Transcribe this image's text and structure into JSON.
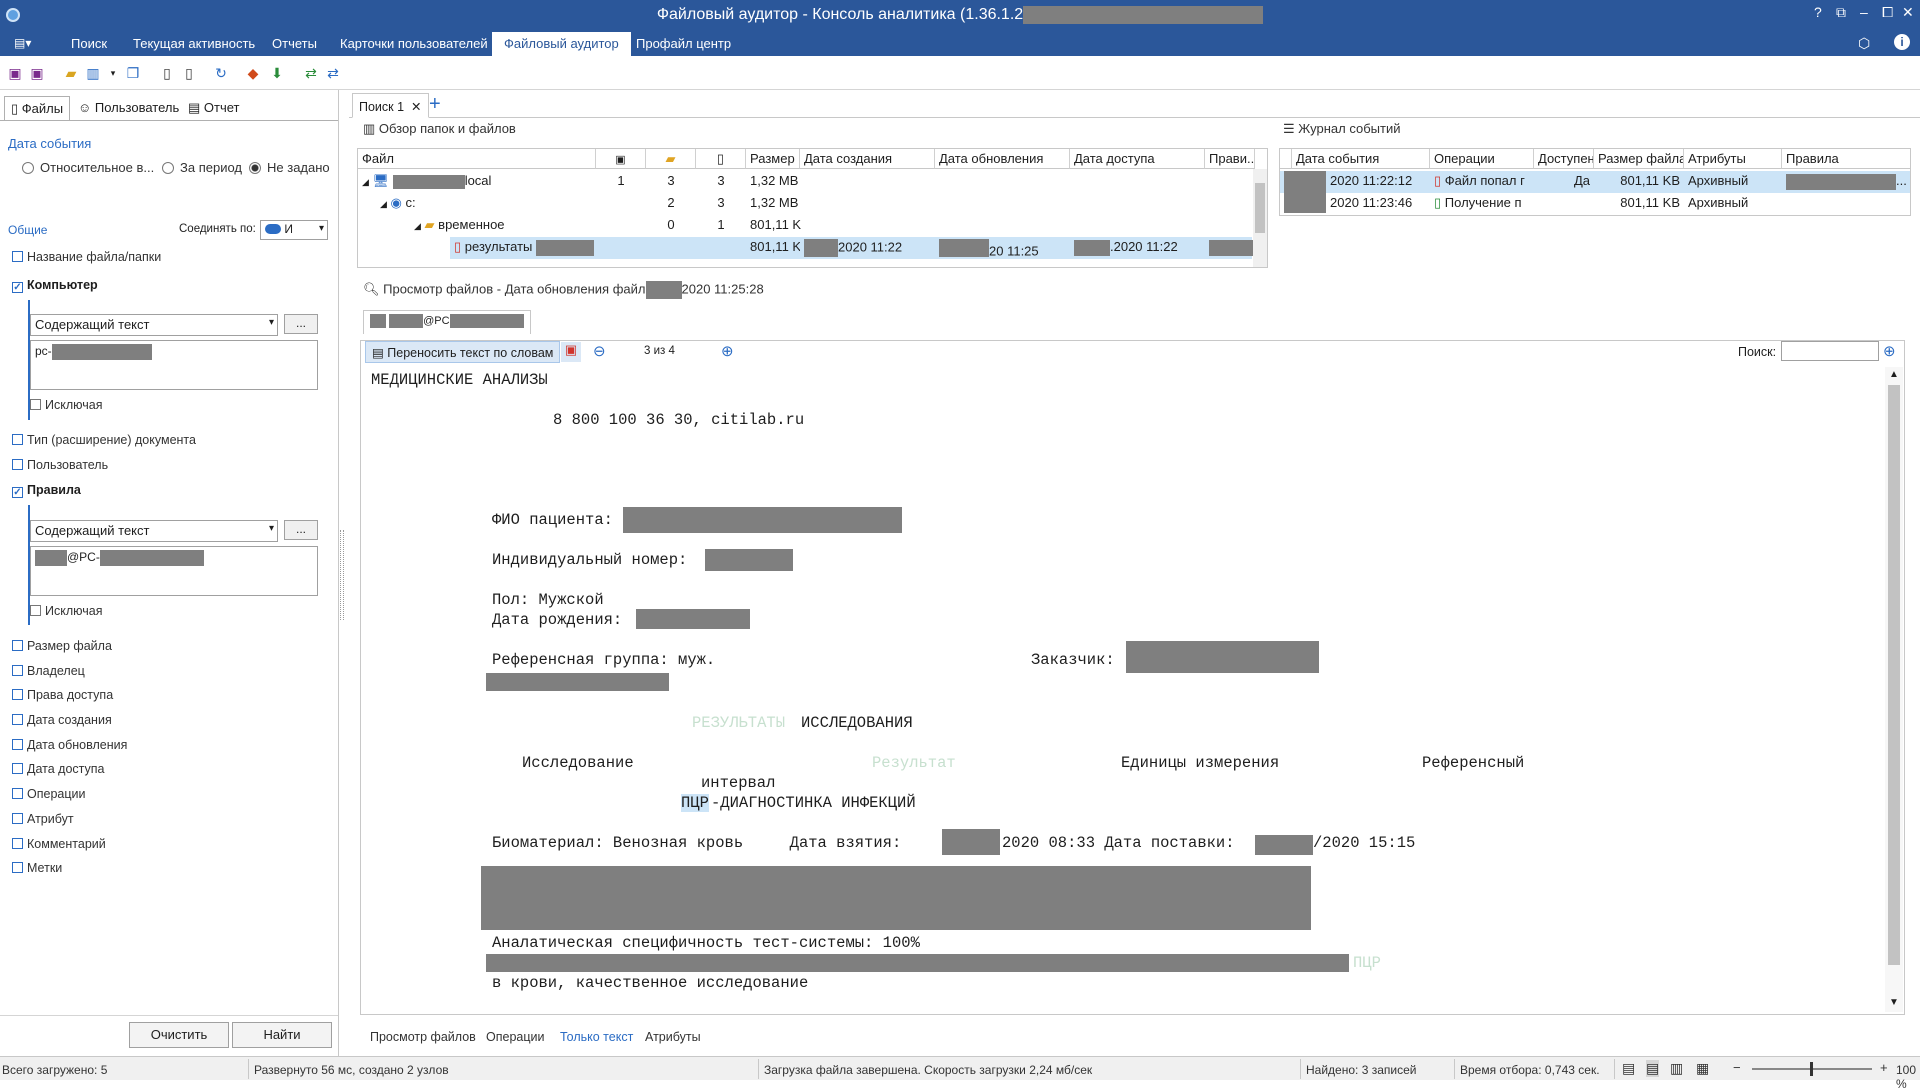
{
  "window": {
    "title": "Файловый аудитор - Консоль аналитика (1.36.1.2",
    "controls": [
      "?",
      "⧉",
      "–",
      "⧠",
      "✕"
    ]
  },
  "ribbon": {
    "tabs": [
      "Поиск",
      "Текущая активность",
      "Отчеты",
      "Карточки пользователей",
      "Файловый аудитор",
      "Профайл центр"
    ],
    "active": "Файловый аудитор"
  },
  "left": {
    "tabs": [
      "Файлы",
      "Пользователь",
      "Отчет"
    ],
    "event_date": {
      "heading": "Дата события",
      "options": [
        "Относительное в...",
        "За период",
        "Не задано"
      ],
      "selected": "Не задано"
    },
    "general": {
      "heading": "Общие",
      "join_label": "Соединять по:",
      "join_value": "И"
    },
    "filters": [
      {
        "label": "Название файла/папки",
        "checked": false
      },
      {
        "label": "Компьютер",
        "checked": true
      },
      {
        "label": "Тип (расширение) документа",
        "checked": false
      },
      {
        "label": "Пользователь",
        "checked": false
      },
      {
        "label": "Правила",
        "checked": true
      },
      {
        "label": "Размер файла",
        "checked": false
      },
      {
        "label": "Владелец",
        "checked": false
      },
      {
        "label": "Права доступа",
        "checked": false
      },
      {
        "label": "Дата создания",
        "checked": false
      },
      {
        "label": "Дата обновления",
        "checked": false
      },
      {
        "label": "Дата доступа",
        "checked": false
      },
      {
        "label": "Операции",
        "checked": false
      },
      {
        "label": "Атрибут",
        "checked": false
      },
      {
        "label": "Комментарий",
        "checked": false
      },
      {
        "label": "Метки",
        "checked": false
      }
    ],
    "computer": {
      "combo": "Содержащий текст",
      "more": "...",
      "text": "pc-",
      "exclude": "Исключая"
    },
    "rules": {
      "combo": "Содержащий текст",
      "more": "...",
      "text": "@PC-",
      "exclude": "Исключая"
    },
    "buttons": {
      "clear": "Очистить",
      "find": "Найти"
    }
  },
  "doc_tab": {
    "label": "Поиск 1",
    "close": "✕",
    "add": "+"
  },
  "overview": {
    "title": "Обзор папок и файлов",
    "headers": [
      "Файл",
      "",
      "",
      "",
      "Размер",
      "Дата создания",
      "Дата обновления",
      "Дата доступа",
      "Прави..."
    ],
    "rows": [
      {
        "name": "local",
        "c1": "1",
        "c2": "3",
        "c3": "3",
        "size": "1,32 MB"
      },
      {
        "name": "c:",
        "c1": "",
        "c2": "2",
        "c3": "3",
        "size": "1,32 MB"
      },
      {
        "name": "временное",
        "c1": "",
        "c2": "0",
        "c3": "1",
        "size": "801,11 K"
      },
      {
        "name": "результаты",
        "size": "801,11 K",
        "created": "2020 11:22",
        "updated": "20 11:25",
        "accessed": ".2020 11:22"
      }
    ]
  },
  "journal": {
    "title": "Журнал событий",
    "headers": [
      "Дата события",
      "Операции",
      "Доступен",
      "Размер файла",
      "Атрибуты",
      "Правила"
    ],
    "rows": [
      {
        "date": "2020 11:22:12",
        "op": "Файл попал г",
        "avail": "Да",
        "size": "801,11 KB",
        "attr": "Архивный",
        "rules": "..."
      },
      {
        "date": "2020 11:23:46",
        "op": "Получение п",
        "avail": "",
        "size": "801,11 KB",
        "attr": "Архивный",
        "rules": ""
      }
    ]
  },
  "preview": {
    "title_prefix": "Просмотр файлов - Дата обновления файл",
    "title_suffix": "2020 11:25:28",
    "file_tab": "@PC",
    "wrap": "Переносить текст по словам",
    "pager": "3 из 4",
    "search_label": "Поиск:",
    "lines": {
      "l1": "МЕДИЦИНСКИЕ АНАЛИЗЫ",
      "l2": "8 800 100 36 30, citilab.ru",
      "l3": "ФИО пациента:",
      "l4": "Индивидуальный номер:",
      "l5": "Пол: Мужской",
      "l6": "Дата рождения:",
      "l7": "Референсная группа: муж.",
      "l8": "Заказчик:",
      "l9a": "РЕЗУЛЬТАТЫ",
      "l9b": "ИССЛЕДОВАНИЯ",
      "l10a": "Исследование",
      "l10b": "Результат",
      "l10c": "Единицы измерения",
      "l10d": "Референсный",
      "l11": "интервал",
      "l12a": "ПЦР",
      "l12b": "-ДИАГНОСТИНКА ИНФЕКЦИЙ",
      "l13a": "Биоматериал: Венозная кровь     Дата взятия:",
      "l13b": "2020 08:33 Дата поставки:",
      "l13c": "/2020 15:15",
      "l14": "Аналатическая специфичность тест-системы: 100%",
      "l15": "ПЦР",
      "l16": "в крови, качественное исследование"
    }
  },
  "bottom_tabs": [
    "Просмотр файлов",
    "Операции",
    "Только текст",
    "Атрибуты"
  ],
  "bottom_active": "Только текст",
  "status": {
    "loaded": "Всего загружено: 5",
    "expanded": "Развернуто 56 мс, создано 2 узлов",
    "download": "Загрузка файла завершена. Скорость загрузки 2,24 мб/сек",
    "found": "Найдено: 3 записей",
    "time": "Время отбора: 0,743 сек.",
    "zoom": "100 %"
  },
  "colors": {
    "accent": "#2b579a",
    "link": "#2b6cc4",
    "selection": "#cce4f7",
    "redact": "#7f7f7f"
  }
}
